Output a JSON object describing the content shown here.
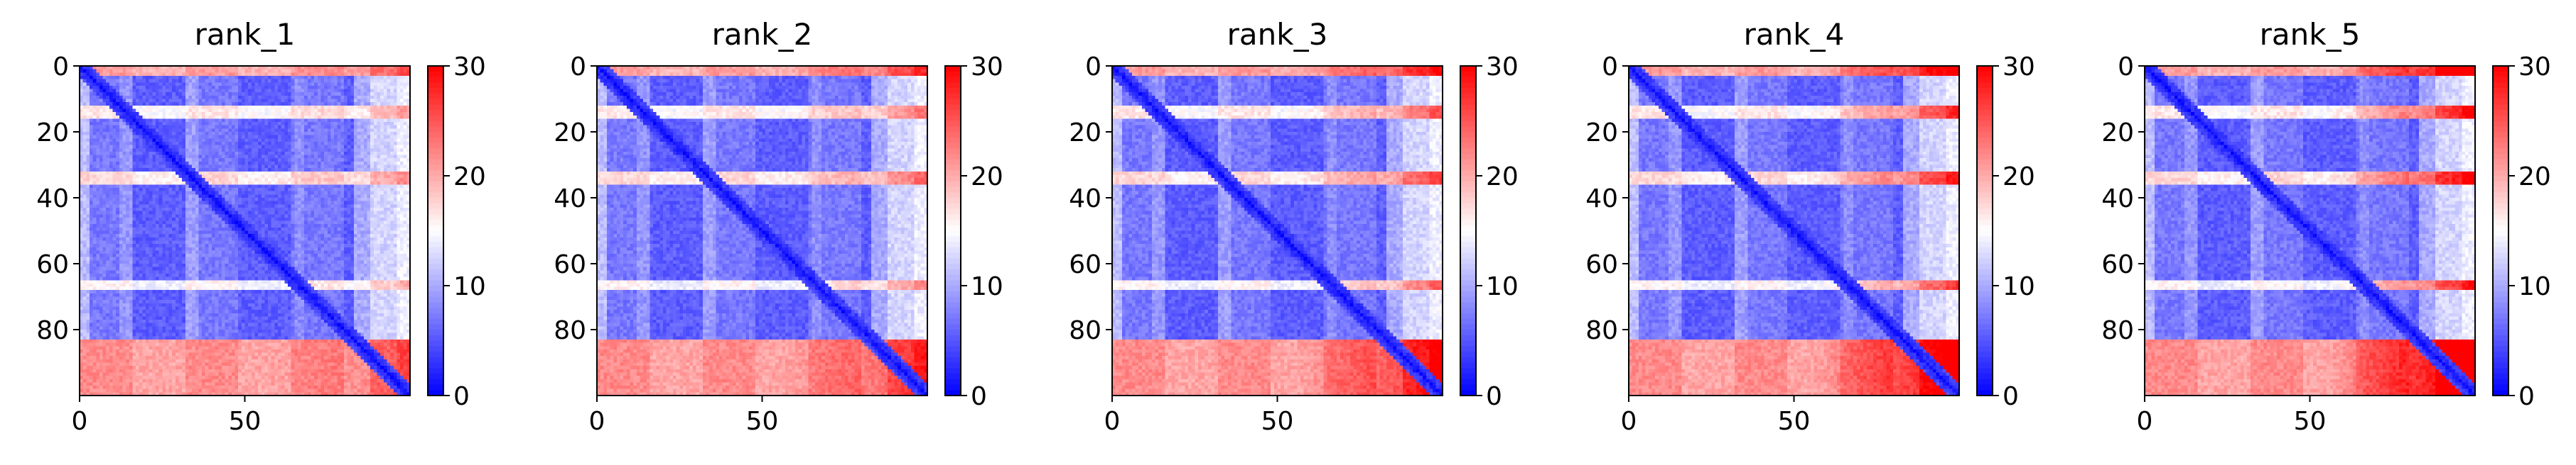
{
  "chart_data": {
    "type": "heatmap",
    "colormap": {
      "low": "#0000ff",
      "mid": "#ffffff",
      "high": "#ff0000",
      "vmin": 0,
      "vmax": 30
    },
    "colorbar_ticks": [
      0,
      10,
      20,
      30
    ],
    "x_ticks": [
      0,
      50
    ],
    "y_ticks": [
      0,
      20,
      40,
      60,
      80
    ],
    "matrix_size": 100,
    "panels": [
      {
        "title": "rank_1",
        "xlim": [
          0,
          100
        ],
        "ylim": [
          100,
          0
        ]
      },
      {
        "title": "rank_2",
        "xlim": [
          0,
          100
        ],
        "ylim": [
          100,
          0
        ]
      },
      {
        "title": "rank_3",
        "xlim": [
          0,
          100
        ],
        "ylim": [
          100,
          0
        ]
      },
      {
        "title": "rank_4",
        "xlim": [
          0,
          100
        ],
        "ylim": [
          100,
          0
        ]
      },
      {
        "title": "rank_5",
        "xlim": [
          0,
          100
        ],
        "ylim": [
          100,
          0
        ]
      }
    ]
  }
}
